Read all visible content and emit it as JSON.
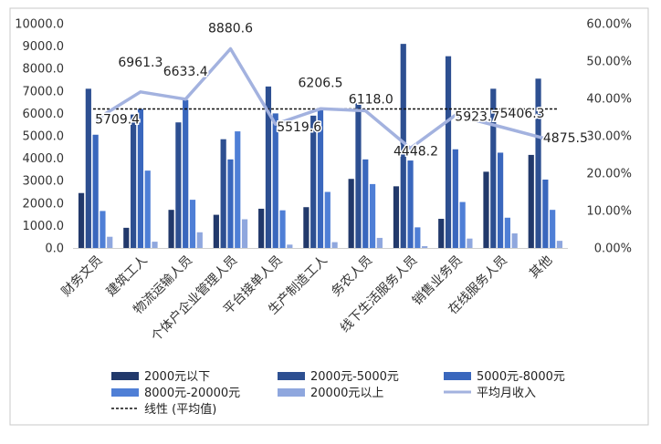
{
  "chart_data": {
    "type": "bar",
    "categories": [
      "财务文员",
      "建筑工人",
      "物流运输人员",
      "个体户企业管理人员",
      "平台接单人员",
      "生产制造工人",
      "务农人员",
      "线下生活服务人员",
      "销售业务员",
      "在线服务人员",
      "其他"
    ],
    "series": [
      {
        "name": "2000元以下",
        "color": "#22396b",
        "values": [
          2450,
          900,
          1700,
          1480,
          1750,
          1820,
          3080,
          2750,
          1300,
          3400,
          4150
        ]
      },
      {
        "name": "2000元-5000元",
        "color": "#2d4f91",
        "values": [
          7100,
          5950,
          5600,
          4850,
          7200,
          5900,
          6450,
          9100,
          8550,
          7100,
          7550
        ]
      },
      {
        "name": "5000元-8000元",
        "color": "#3a67bd",
        "values": [
          5050,
          6200,
          6600,
          3950,
          6000,
          6200,
          3950,
          3900,
          4400,
          4250,
          3050
        ]
      },
      {
        "name": "8000元-20000元",
        "color": "#4f7fd6",
        "values": [
          1650,
          3450,
          2150,
          5200,
          1680,
          2500,
          2850,
          920,
          2050,
          1350,
          1700
        ]
      },
      {
        "name": "20000元以上",
        "color": "#8fa7de",
        "values": [
          500,
          280,
          700,
          1280,
          150,
          260,
          450,
          80,
          420,
          650,
          320
        ]
      }
    ],
    "line": {
      "name": "平均月收入",
      "color": "#a3b2df",
      "values": [
        5709.4,
        6961.3,
        6633.4,
        8880.6,
        5519.6,
        6206.5,
        6118.0,
        4448.2,
        5923.7,
        5406.3,
        4875.5
      ],
      "labels": [
        "5709.4",
        "6961.3",
        "6633.4",
        "8880.6",
        "5519.6",
        "6206.5",
        "6118.0",
        "4448.2",
        "5923.7",
        "5406.3",
        "4875.5"
      ]
    },
    "average_line": {
      "name": "线性 (平均值)",
      "value": 6200
    },
    "y_left": {
      "min": 0,
      "max": 10000,
      "ticks": [
        "0.0",
        "1000.0",
        "2000.0",
        "3000.0",
        "4000.0",
        "5000.0",
        "6000.0",
        "7000.0",
        "8000.0",
        "9000.0",
        "10000.0"
      ]
    },
    "y_right": {
      "min": 0,
      "max": 60,
      "ticks": [
        "0.00%",
        "10.00%",
        "20.00%",
        "30.00%",
        "40.00%",
        "50.00%",
        "60.00%"
      ]
    },
    "legend": {
      "position": "bottom"
    }
  },
  "legend_labels": {
    "s0": "2000元以下",
    "s1": "2000元-5000元",
    "s2": "5000元-8000元",
    "s3": "8000元-20000元",
    "s4": "20000元以上",
    "line": "平均月收入",
    "avg": "线性 (平均值)"
  }
}
